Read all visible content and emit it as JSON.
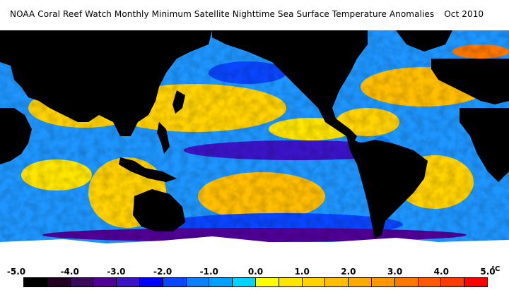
{
  "title": {
    "text": "NOAA Coral Reef Watch Monthly Minimum Satellite Nighttime Sea Surface Temperature Anomalies",
    "date": "Oct 2010"
  },
  "map": {
    "land_color": "#000000",
    "ice_color": "#ffffff"
  },
  "legend": {
    "unit": "°C",
    "labels": [
      "-5.0",
      "-4.0",
      "-3.0",
      "-2.0",
      "-1.0",
      "0.0",
      "1.0",
      "2.0",
      "3.0",
      "4.0",
      "5.0"
    ],
    "colors": [
      "#000000",
      "#220022",
      "#3c0a5a",
      "#500096",
      "#3c14c8",
      "#0000ff",
      "#0a46ff",
      "#0a82ff",
      "#00a0ff",
      "#00d2ff",
      "#ffff00",
      "#ffe600",
      "#ffd200",
      "#ffbe00",
      "#ffaa00",
      "#ff9600",
      "#ff7800",
      "#ff5a00",
      "#ff3c00",
      "#ff0000"
    ]
  }
}
